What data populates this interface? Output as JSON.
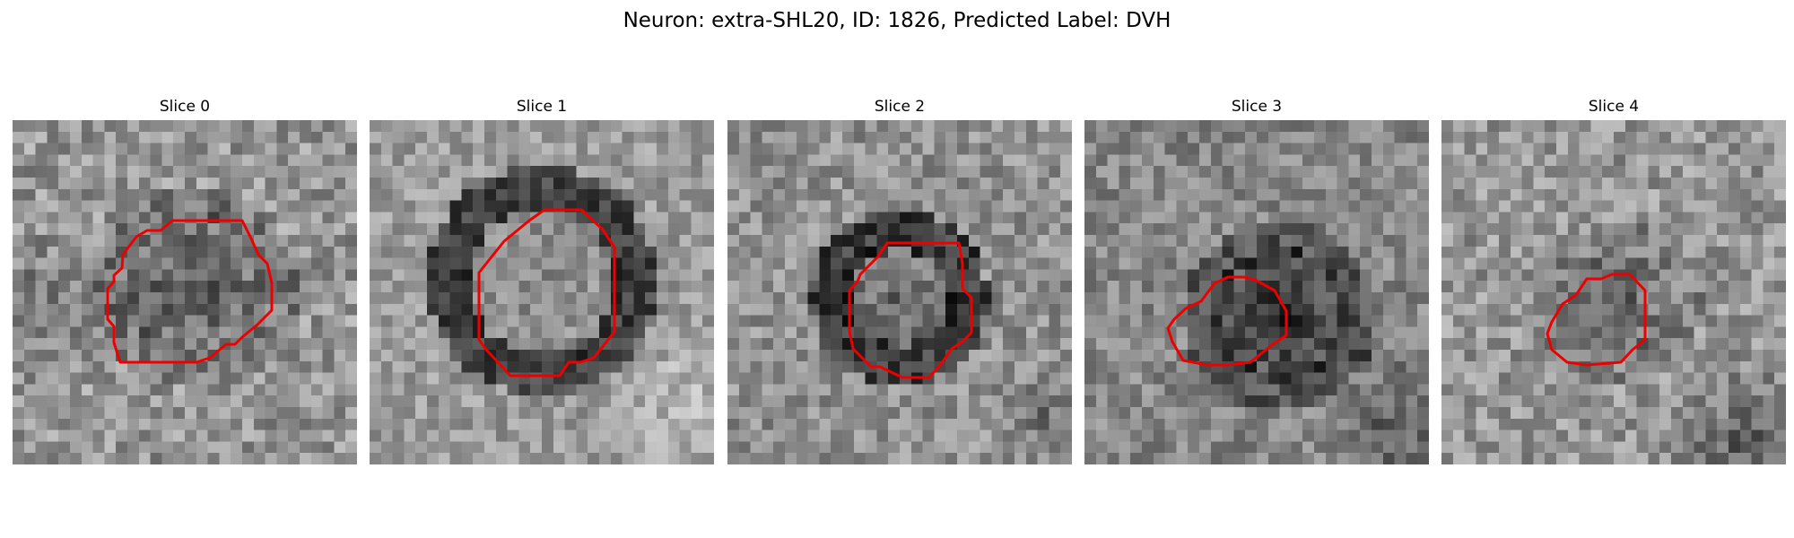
{
  "title": "Neuron: extra-SHL20, ID: 1826, Predicted Label: DVH",
  "contour_color": "#ee0000",
  "panels": [
    {
      "title": "Slice 0",
      "image": "grayscale-microscopy-slice",
      "contour": "red-cell-outline"
    },
    {
      "title": "Slice 1",
      "image": "grayscale-microscopy-slice",
      "contour": "red-cell-outline"
    },
    {
      "title": "Slice 2",
      "image": "grayscale-microscopy-slice",
      "contour": "red-cell-outline"
    },
    {
      "title": "Slice 3",
      "image": "grayscale-microscopy-slice",
      "contour": "red-cell-outline"
    },
    {
      "title": "Slice 4",
      "image": "grayscale-microscopy-slice",
      "contour": "red-cell-outline"
    }
  ]
}
